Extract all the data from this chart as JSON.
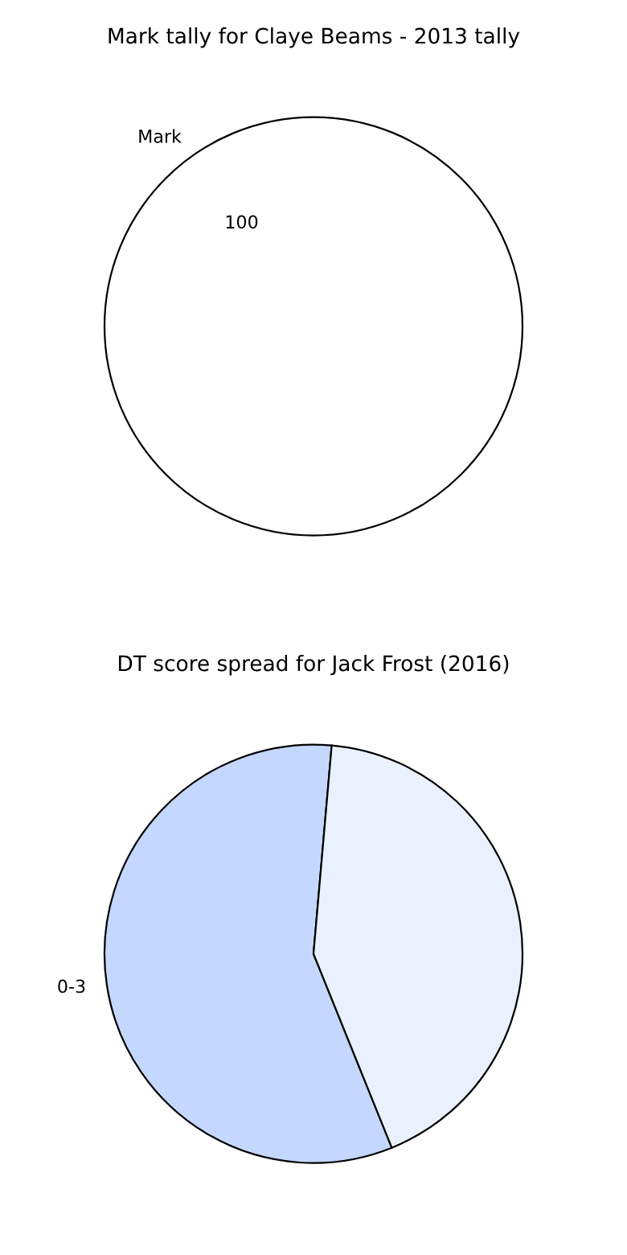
{
  "chart_data": [
    {
      "type": "pie",
      "title": "Mark tally for Claye Beams - 2013 tally",
      "categories": [
        "Mark"
      ],
      "values": [
        100
      ],
      "colors": [
        "#ffffff"
      ],
      "data_labels": true
    },
    {
      "type": "pie",
      "title": "DT score spread for Jack Frost (2016)",
      "categories": [
        "0-3",
        null
      ],
      "values": [
        57.5,
        42.5
      ],
      "colors": [
        "#c4d8ff",
        "#eaf1fe"
      ]
    }
  ]
}
